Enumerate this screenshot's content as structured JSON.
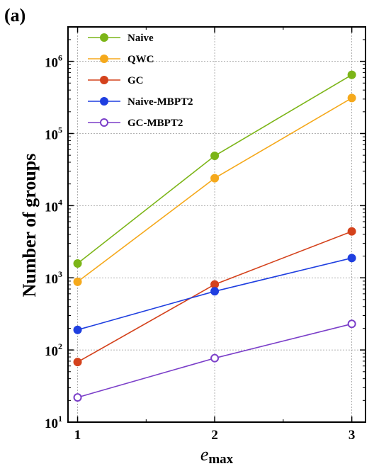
{
  "chart_data": {
    "type": "line",
    "panel_label": "(a)",
    "xlabel_main": "e",
    "xlabel_sub": "max",
    "ylabel": "Number  of  groups",
    "x": [
      1,
      2,
      3
    ],
    "xlim": [
      0.93,
      3.1
    ],
    "ylim": [
      10,
      3000000
    ],
    "yscale": "log",
    "yticks_base": [
      "10",
      "10",
      "10",
      "10",
      "10",
      "10"
    ],
    "yticks_exp": [
      "1",
      "2",
      "3",
      "4",
      "5",
      "6"
    ],
    "xticks": [
      "1",
      "2",
      "3"
    ],
    "grid": true,
    "legend_position": "top-left",
    "series": [
      {
        "name": "Naive",
        "values": [
          1580,
          49000,
          650000
        ],
        "color": "#7cb518",
        "marker": "filled"
      },
      {
        "name": "QWC",
        "values": [
          880,
          24000,
          310000
        ],
        "color": "#f5a91c",
        "marker": "filled"
      },
      {
        "name": "GC",
        "values": [
          68,
          810,
          4400
        ],
        "color": "#d4421c",
        "marker": "filled"
      },
      {
        "name": "Naive-MBPT2",
        "values": [
          190,
          650,
          1880
        ],
        "color": "#1f3fe0",
        "marker": "filled"
      },
      {
        "name": "GC-MBPT2",
        "values": [
          22,
          77,
          230
        ],
        "color": "#7b3fc9",
        "marker": "open"
      }
    ]
  }
}
